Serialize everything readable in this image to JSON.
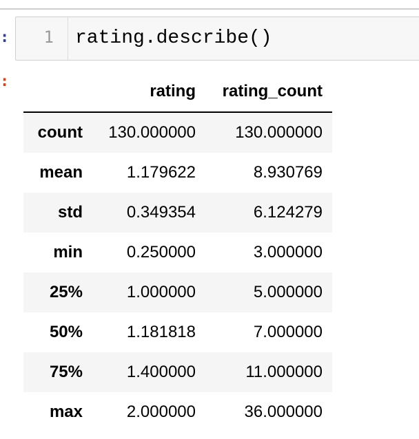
{
  "input_prompt": ":",
  "output_prompt": ":",
  "code_cell": {
    "line_number": "1",
    "code": "rating.describe()"
  },
  "table": {
    "columns": [
      "rating",
      "rating_count"
    ],
    "rows": [
      {
        "index": "count",
        "values": [
          "130.000000",
          "130.000000"
        ]
      },
      {
        "index": "mean",
        "values": [
          "1.179622",
          "8.930769"
        ]
      },
      {
        "index": "std",
        "values": [
          "0.349354",
          "6.124279"
        ]
      },
      {
        "index": "min",
        "values": [
          "0.250000",
          "3.000000"
        ]
      },
      {
        "index": "25%",
        "values": [
          "1.000000",
          "5.000000"
        ]
      },
      {
        "index": "50%",
        "values": [
          "1.181818",
          "7.000000"
        ]
      },
      {
        "index": "75%",
        "values": [
          "1.400000",
          "11.000000"
        ]
      },
      {
        "index": "max",
        "values": [
          "2.000000",
          "36.000000"
        ]
      }
    ]
  },
  "colors": {
    "in_prompt": "#303f9f",
    "out_prompt": "#d84315",
    "row_stripe": "#f5f5f5"
  }
}
